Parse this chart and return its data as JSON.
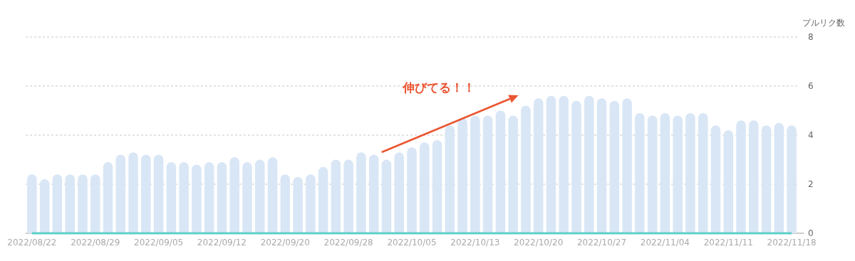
{
  "chart_data": {
    "type": "bar",
    "ylabel": "プルリク数",
    "categories": [
      "2022/08/22",
      null,
      null,
      null,
      null,
      "2022/08/29",
      null,
      null,
      null,
      null,
      "2022/09/05",
      null,
      null,
      null,
      null,
      "2022/09/12",
      null,
      null,
      null,
      null,
      "2022/09/20",
      null,
      null,
      null,
      null,
      "2022/09/28",
      null,
      null,
      null,
      null,
      "2022/10/05",
      null,
      null,
      null,
      null,
      "2022/10/13",
      null,
      null,
      null,
      null,
      "2022/10/20",
      null,
      null,
      null,
      null,
      "2022/10/27",
      null,
      null,
      null,
      null,
      "2022/11/04",
      null,
      null,
      null,
      null,
      "2022/11/11",
      null,
      null,
      null,
      null,
      "2022/11/18"
    ],
    "series": [
      {
        "color": "#d9e6f5",
        "values": [
          2.4,
          2.2,
          2.4,
          2.4,
          2.4,
          2.4,
          2.9,
          3.2,
          3.3,
          3.2,
          3.2,
          2.9,
          2.9,
          2.8,
          2.9,
          2.9,
          3.1,
          2.9,
          3.0,
          3.1,
          2.4,
          2.3,
          2.4,
          2.7,
          3.0,
          3.0,
          3.3,
          3.2,
          3.0,
          3.3,
          3.5,
          3.7,
          3.8,
          4.4,
          4.7,
          4.8,
          4.8,
          5.0,
          4.8,
          5.2,
          5.5,
          5.6,
          5.6,
          5.4,
          5.6,
          5.5,
          5.4,
          5.5,
          4.9,
          4.8,
          4.9,
          4.8,
          4.9,
          4.9,
          4.4,
          4.2,
          4.6,
          4.6,
          4.4,
          4.5,
          4.4
        ]
      },
      {
        "type": "line",
        "color": "#5ecfc9",
        "values": [
          0,
          0,
          0,
          0,
          0,
          0,
          0,
          0,
          0,
          0,
          0,
          0,
          0,
          0,
          0,
          0,
          0,
          0,
          0,
          0,
          0,
          0,
          0,
          0,
          0,
          0,
          0,
          0,
          0,
          0,
          0,
          0,
          0,
          0,
          0,
          0,
          0,
          0,
          0,
          0,
          0,
          0,
          0,
          0,
          0,
          0,
          0,
          0,
          0,
          0,
          0,
          0,
          0,
          0,
          0,
          0,
          0,
          0,
          0,
          0,
          0
        ]
      }
    ],
    "ylim": [
      0,
      8
    ],
    "yticks": [
      0,
      2,
      4,
      6,
      8
    ],
    "grid": "y",
    "annotations": [
      "伸びてる！！"
    ]
  }
}
